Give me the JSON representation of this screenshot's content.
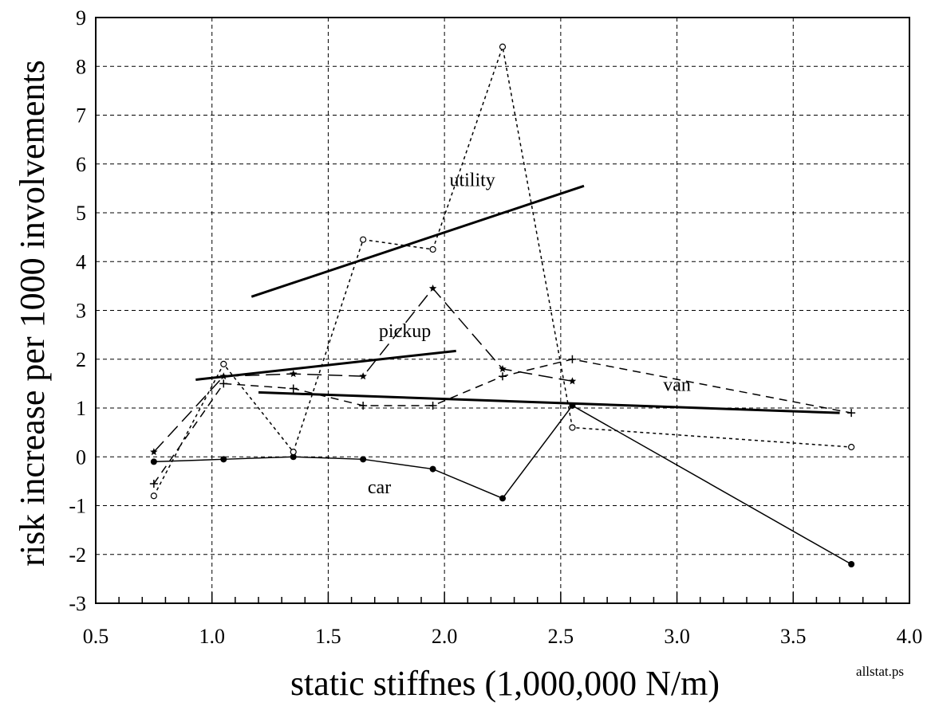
{
  "chart_data": {
    "type": "line",
    "title": "",
    "xlabel": "static stiffnes (1,000,000 N/m)",
    "ylabel": "risk increase per 1000 involvements",
    "xlim": [
      0.5,
      4.0
    ],
    "ylim": [
      -3,
      9
    ],
    "xticks": [
      "0.5",
      "1.0",
      "1.5",
      "2.0",
      "2.5",
      "3.0",
      "3.5",
      "4.0"
    ],
    "yticks": [
      "-3",
      "-2",
      "-1",
      "0",
      "1",
      "2",
      "3",
      "4",
      "5",
      "6",
      "7",
      "8",
      "9"
    ],
    "grid": true,
    "legend": "none",
    "file_tag": "allstat.ps",
    "series": [
      {
        "name": "car",
        "marker": "filled-circle",
        "style": "solid",
        "x": [
          0.75,
          1.05,
          1.35,
          1.65,
          1.95,
          2.25,
          2.55,
          3.75
        ],
        "y": [
          -0.1,
          -0.05,
          0.0,
          -0.05,
          -0.25,
          -0.85,
          1.05,
          -2.2
        ]
      },
      {
        "name": "utility",
        "marker": "open-circle",
        "style": "dotted",
        "x": [
          0.75,
          1.05,
          1.35,
          1.65,
          1.95,
          2.25,
          2.55,
          3.75
        ],
        "y": [
          -0.8,
          1.9,
          0.1,
          4.45,
          4.25,
          8.4,
          0.6,
          0.2
        ]
      },
      {
        "name": "pickup",
        "marker": "star",
        "style": "long-dash",
        "x": [
          0.75,
          1.05,
          1.35,
          1.65,
          1.95,
          2.25,
          2.55
        ],
        "y": [
          0.1,
          1.65,
          1.7,
          1.65,
          3.45,
          1.8,
          1.55
        ]
      },
      {
        "name": "van",
        "marker": "plus",
        "style": "dashed",
        "x": [
          0.75,
          1.05,
          1.35,
          1.65,
          1.95,
          2.25,
          2.55,
          3.75
        ],
        "y": [
          -0.55,
          1.5,
          1.4,
          1.05,
          1.05,
          1.65,
          2.0,
          0.9
        ]
      }
    ],
    "trend_lines": [
      {
        "name": "utility",
        "x": [
          1.17,
          2.6
        ],
        "y": [
          3.28,
          5.55
        ]
      },
      {
        "name": "pickup",
        "x": [
          0.93,
          2.05
        ],
        "y": [
          1.58,
          2.17
        ]
      },
      {
        "name": "van",
        "x": [
          1.2,
          3.7
        ],
        "y": [
          1.32,
          0.9
        ]
      }
    ],
    "annotations": [
      {
        "text": "utility",
        "x": 2.12,
        "y": 5.55
      },
      {
        "text": "pickup",
        "x": 1.83,
        "y": 2.45
      },
      {
        "text": "van",
        "x": 3.0,
        "y": 1.35
      },
      {
        "text": "car",
        "x": 1.72,
        "y": -0.75
      }
    ]
  }
}
